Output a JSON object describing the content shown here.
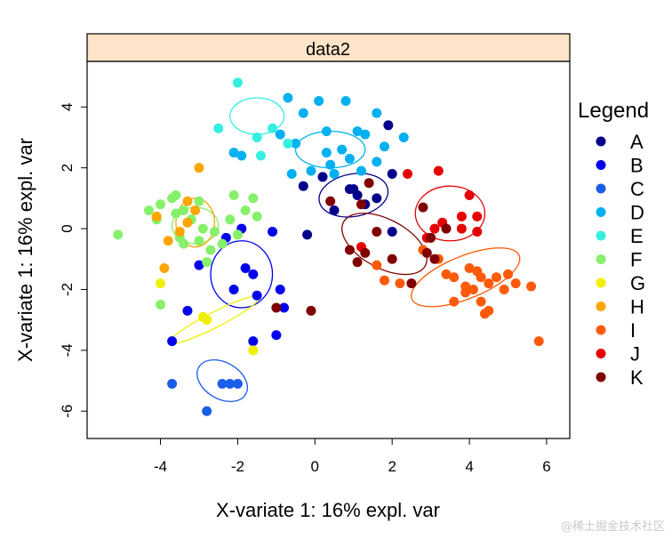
{
  "chart_data": {
    "type": "scatter",
    "panel_title": "data2",
    "xlabel": "X-variate 1: 16% expl. var",
    "ylabel": "X-variate 1: 16% expl. var",
    "xlim": [
      -5.9,
      6.6
    ],
    "ylim": [
      -6.9,
      5.5
    ],
    "xticks": [
      -4,
      -2,
      0,
      2,
      4,
      6
    ],
    "yticks": [
      -6,
      -4,
      -2,
      0,
      2,
      4
    ],
    "legend": {
      "title": "Legend",
      "position": "right"
    },
    "colors": {
      "strip": "#ffe4c9",
      "axis": "#000000",
      "A": "#00008b",
      "B": "#0000ee",
      "C": "#1a5ee8",
      "D": "#00b0f0",
      "E": "#33f0e0",
      "F": "#86f06a",
      "G": "#f0f000",
      "H": "#ffa500",
      "I": "#ff5a0a",
      "J": "#e60000",
      "K": "#800000"
    },
    "series": [
      {
        "name": "A",
        "ellipse": {
          "cx": 1.0,
          "cy": 1.1,
          "rx": 0.9,
          "ry": 0.7,
          "angle": 10
        },
        "points": [
          [
            -0.3,
            1.4
          ],
          [
            0.2,
            1.7
          ],
          [
            0.5,
            0.6
          ],
          [
            1.0,
            1.3
          ],
          [
            1.1,
            1.1
          ],
          [
            1.3,
            0.8
          ],
          [
            1.6,
            1.0
          ],
          [
            1.9,
            3.4
          ],
          [
            2.0,
            -0.1
          ],
          [
            2.0,
            1.8
          ],
          [
            0.9,
            1.3
          ],
          [
            -0.2,
            -0.2
          ]
        ]
      },
      {
        "name": "B",
        "ellipse": {
          "cx": -1.9,
          "cy": -1.5,
          "rx": 0.8,
          "ry": 1.1,
          "angle": 0
        },
        "points": [
          [
            -3.0,
            -1.2
          ],
          [
            -2.3,
            -0.3
          ],
          [
            -2.1,
            -2.0
          ],
          [
            -1.8,
            -1.3
          ],
          [
            -1.6,
            -1.5
          ],
          [
            -1.5,
            -2.2
          ],
          [
            -1.1,
            -0.1
          ],
          [
            -0.9,
            -2.0
          ],
          [
            -0.8,
            -2.6
          ],
          [
            -1.0,
            -3.5
          ],
          [
            -1.6,
            -3.7
          ],
          [
            -3.3,
            -2.7
          ],
          [
            -3.7,
            -3.7
          ],
          [
            -1.9,
            0.0
          ]
        ]
      },
      {
        "name": "C",
        "ellipse": {
          "cx": -2.4,
          "cy": -5.0,
          "rx": 0.7,
          "ry": 0.6,
          "angle": -30
        },
        "points": [
          [
            -3.7,
            -5.1
          ],
          [
            -2.8,
            -6.0
          ],
          [
            -2.0,
            -5.1
          ],
          [
            -2.2,
            -5.1
          ],
          [
            -2.4,
            -5.1
          ]
        ]
      },
      {
        "name": "D",
        "ellipse": {
          "cx": 0.4,
          "cy": 2.6,
          "rx": 0.9,
          "ry": 0.6,
          "angle": 0
        },
        "points": [
          [
            -0.7,
            4.3
          ],
          [
            0.1,
            4.2
          ],
          [
            0.8,
            4.2
          ],
          [
            -0.3,
            3.8
          ],
          [
            1.6,
            3.8
          ],
          [
            -0.9,
            3.1
          ],
          [
            0.3,
            3.2
          ],
          [
            1.1,
            3.2
          ],
          [
            1.3,
            3.1
          ],
          [
            2.3,
            3.0
          ],
          [
            -0.5,
            2.8
          ],
          [
            0.7,
            2.6
          ],
          [
            0.9,
            2.3
          ],
          [
            0.4,
            2.1
          ],
          [
            -0.1,
            1.9
          ],
          [
            0.5,
            1.8
          ],
          [
            1.2,
            1.9
          ],
          [
            -1.9,
            2.4
          ],
          [
            -2.1,
            2.5
          ],
          [
            0.3,
            2.5
          ],
          [
            1.8,
            2.7
          ],
          [
            1.6,
            2.2
          ],
          [
            -0.6,
            1.8
          ]
        ]
      },
      {
        "name": "E",
        "ellipse": {
          "cx": -1.5,
          "cy": 3.7,
          "rx": 0.7,
          "ry": 0.6,
          "angle": 0
        },
        "points": [
          [
            -2.0,
            4.8
          ],
          [
            -2.5,
            3.3
          ],
          [
            -1.4,
            2.4
          ],
          [
            -0.7,
            2.8
          ],
          [
            -1.5,
            3.0
          ],
          [
            -1.1,
            3.3
          ]
        ]
      },
      {
        "name": "F",
        "ellipse": {
          "cx": -3.1,
          "cy": 0.1,
          "rx": 0.6,
          "ry": 0.6,
          "angle": 0
        },
        "points": [
          [
            -5.1,
            -0.2
          ],
          [
            -4.3,
            0.6
          ],
          [
            -4.0,
            0.8
          ],
          [
            -3.7,
            1.0
          ],
          [
            -3.6,
            0.5
          ],
          [
            -3.2,
            0.3
          ],
          [
            -3.4,
            0.6
          ],
          [
            -2.9,
            0.0
          ],
          [
            -2.6,
            -0.1
          ],
          [
            -2.2,
            0.3
          ],
          [
            -2.0,
            -0.2
          ],
          [
            -1.8,
            0.6
          ],
          [
            -1.5,
            0.4
          ],
          [
            -3.0,
            -0.4
          ],
          [
            -2.7,
            -0.7
          ],
          [
            -2.8,
            -1.1
          ],
          [
            -2.4,
            -0.5
          ],
          [
            -3.5,
            -0.3
          ],
          [
            -3.4,
            -0.5
          ],
          [
            -4.0,
            -2.5
          ],
          [
            -3.6,
            1.1
          ],
          [
            -2.1,
            1.1
          ],
          [
            -1.6,
            1.0
          ],
          [
            -3.0,
            0.9
          ],
          [
            -4.1,
            0.3
          ]
        ]
      },
      {
        "name": "G",
        "ellipse": {
          "cx": -2.6,
          "cy": -3.0,
          "rx": 1.3,
          "ry": 0.25,
          "angle": 27
        },
        "points": [
          [
            -4.0,
            -1.8
          ],
          [
            -2.8,
            -3.0
          ],
          [
            -1.6,
            -4.0
          ],
          [
            -2.9,
            -2.9
          ]
        ]
      },
      {
        "name": "H",
        "ellipse": {
          "cx": -3.1,
          "cy": 0.2,
          "rx": 0.5,
          "ry": 0.8,
          "angle": 0
        },
        "points": [
          [
            -3.0,
            2.0
          ],
          [
            -3.1,
            0.6
          ],
          [
            -3.3,
            0.2
          ],
          [
            -3.5,
            -0.1
          ],
          [
            -3.8,
            -0.4
          ],
          [
            -3.9,
            -1.3
          ],
          [
            -4.1,
            0.4
          ],
          [
            -3.3,
            0.9
          ]
        ]
      },
      {
        "name": "I",
        "ellipse": {
          "cx": 3.9,
          "cy": -1.6,
          "rx": 1.5,
          "ry": 0.7,
          "angle": 22
        },
        "points": [
          [
            2.8,
            -0.7
          ],
          [
            3.2,
            -1.0
          ],
          [
            3.6,
            -1.6
          ],
          [
            3.4,
            -1.5
          ],
          [
            4.0,
            -1.3
          ],
          [
            4.2,
            -1.4
          ],
          [
            4.3,
            -1.6
          ],
          [
            4.5,
            -1.8
          ],
          [
            4.1,
            -2.0
          ],
          [
            3.9,
            -2.1
          ],
          [
            4.7,
            -1.6
          ],
          [
            4.9,
            -2.0
          ],
          [
            5.2,
            -1.8
          ],
          [
            5.6,
            -1.9
          ],
          [
            5.8,
            -3.7
          ],
          [
            4.3,
            -2.4
          ],
          [
            4.5,
            -2.7
          ],
          [
            3.6,
            -2.4
          ],
          [
            3.9,
            -1.9
          ],
          [
            2.2,
            -1.8
          ],
          [
            1.8,
            -1.7
          ],
          [
            1.6,
            -1.2
          ],
          [
            5.0,
            -1.5
          ],
          [
            4.4,
            -2.8
          ]
        ]
      },
      {
        "name": "J",
        "ellipse": {
          "cx": 3.5,
          "cy": 0.5,
          "rx": 0.9,
          "ry": 0.9,
          "angle": 0
        },
        "points": [
          [
            3.2,
            1.9
          ],
          [
            3.3,
            0.2
          ],
          [
            3.1,
            0.0
          ],
          [
            2.9,
            -0.3
          ],
          [
            3.8,
            0.4
          ],
          [
            4.0,
            1.1
          ],
          [
            4.2,
            0.4
          ],
          [
            3.8,
            0.0
          ],
          [
            2.4,
            1.8
          ],
          [
            1.2,
            -0.6
          ],
          [
            4.2,
            -0.1
          ]
        ]
      },
      {
        "name": "K",
        "ellipse": {
          "cx": 1.8,
          "cy": -0.5,
          "rx": 1.2,
          "ry": 0.8,
          "angle": -28
        },
        "points": [
          [
            1.2,
            0.8
          ],
          [
            1.4,
            1.5
          ],
          [
            1.3,
            -0.8
          ],
          [
            1.6,
            -0.1
          ],
          [
            2.0,
            -1.0
          ],
          [
            2.5,
            -1.8
          ],
          [
            3.1,
            -1.0
          ],
          [
            2.9,
            -0.8
          ],
          [
            3.0,
            -0.3
          ],
          [
            0.9,
            -0.7
          ],
          [
            1.1,
            -1.1
          ],
          [
            -1.0,
            -2.6
          ],
          [
            -0.1,
            -2.7
          ],
          [
            0.4,
            0.9
          ],
          [
            2.8,
            0.7
          ],
          [
            3.4,
            0.0
          ]
        ]
      }
    ]
  },
  "watermark": "@稀土掘金技术社区"
}
